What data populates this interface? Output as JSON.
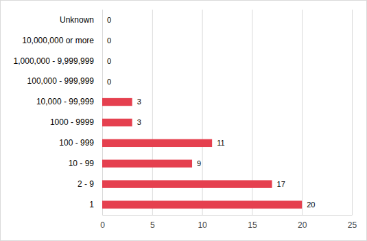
{
  "chart_data": {
    "type": "bar",
    "orientation": "horizontal",
    "categories": [
      "1",
      "2 - 9",
      "10 - 99",
      "100 - 999",
      "1000 - 9999",
      "10,000 - 99,999",
      "100,000 - 999,999",
      "1,000,000 - 9,999,999",
      "10,000,000 or more",
      "Unknown"
    ],
    "values": [
      20,
      17,
      9,
      11,
      3,
      3,
      0,
      0,
      0,
      0
    ],
    "color": "#e5404f",
    "xlim": [
      0,
      25
    ],
    "xticks": [
      0,
      5,
      10,
      15,
      20,
      25
    ],
    "grid": true,
    "data_labels": true
  }
}
